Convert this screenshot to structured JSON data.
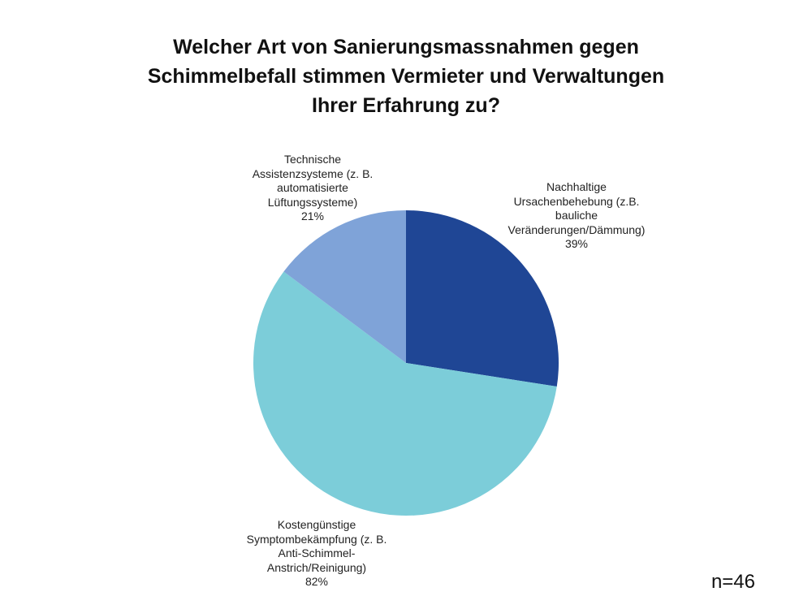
{
  "title_lines": [
    "Welcher Art von Sanierungsmassnahmen gegen",
    "Schimmelbefall stimmen Vermieter und Verwaltungen",
    "Ihrer Erfahrung zu?"
  ],
  "sample_note": "n=46",
  "chart_data": {
    "type": "pie",
    "title": "Welcher Art von Sanierungsmassnahmen gegen Schimmelbefall stimmen Vermieter und Verwaltungen Ihrer Erfahrung zu?",
    "slices": [
      {
        "label_lines": [
          "Nachhaltige",
          "Ursachenbehebung (z.B.",
          "bauliche",
          "Veränderungen/Dämmung)"
        ],
        "pct_label": "39%",
        "value": 39,
        "color": "#1f4695"
      },
      {
        "label_lines": [
          "Kostengünstige",
          "Symptombekämpfung (z. B.",
          "Anti-Schimmel-",
          "Anstrich/Reinigung)"
        ],
        "pct_label": "82%",
        "value": 82,
        "color": "#7ccdd9"
      },
      {
        "label_lines": [
          "Technische",
          "Assistenzsysteme (z. B.",
          "automatisierte",
          "Lüftungssysteme)"
        ],
        "pct_label": "21%",
        "value": 21,
        "color": "#7fa3d8"
      }
    ],
    "start_angle": "12 o'clock",
    "direction": "clockwise",
    "legend": "none"
  }
}
